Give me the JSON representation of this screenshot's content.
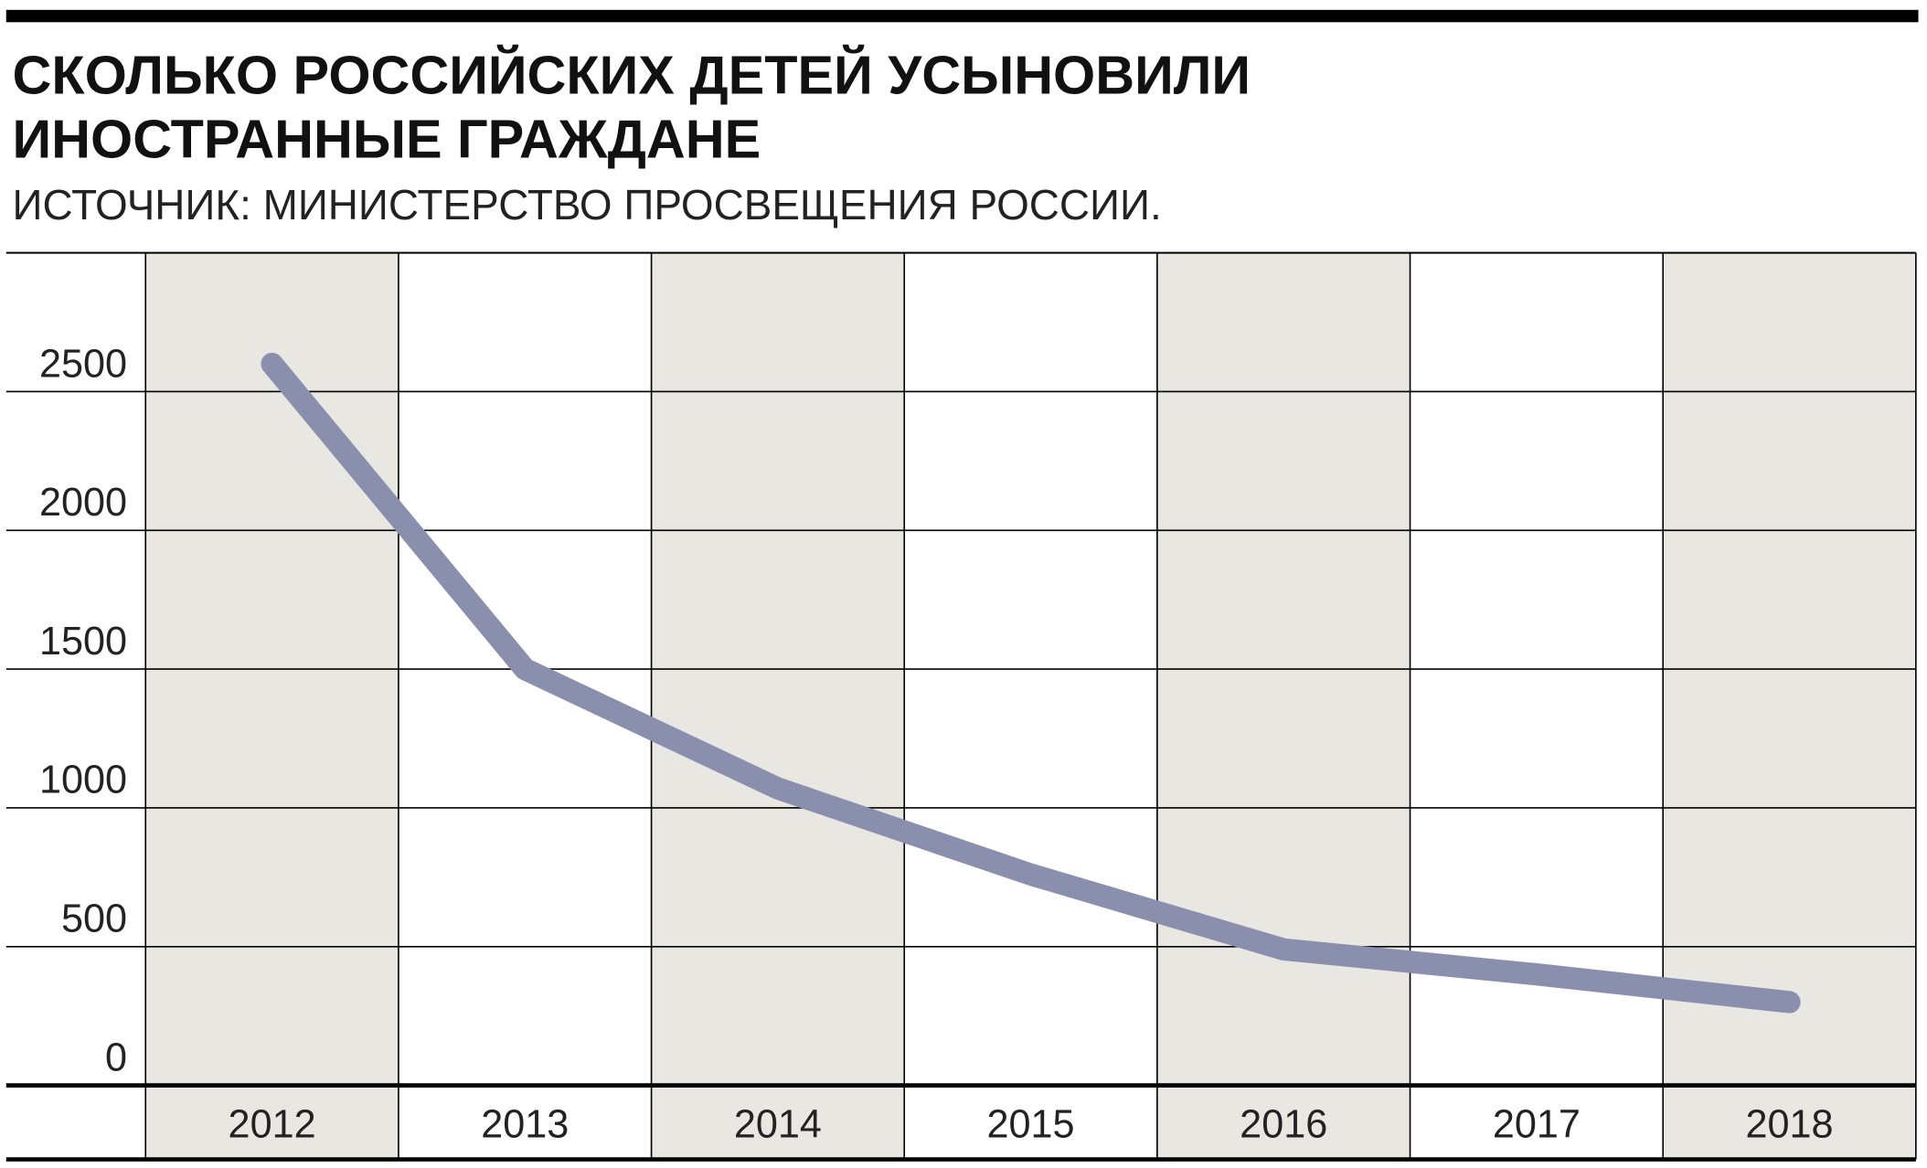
{
  "chart_data": {
    "type": "line",
    "title": [
      "СКОЛЬКО РОССИЙСКИХ ДЕТЕЙ УСЫНОВИЛИ",
      "ИНОСТРАННЫЕ ГРАЖДАНЕ"
    ],
    "subtitle": "ИСТОЧНИК: МИНИСТЕРСТВО ПРОСВЕЩЕНИЯ РОССИИ.",
    "categories": [
      "2012",
      "2013",
      "2014",
      "2015",
      "2016",
      "2017",
      "2018"
    ],
    "values": [
      2600,
      1500,
      1070,
      760,
      490,
      400,
      300
    ],
    "color": "#8b8fae",
    "ylim": [
      0,
      3000
    ],
    "yticks": [
      0,
      500,
      1000,
      1500,
      2000,
      2500
    ],
    "grid": true
  }
}
